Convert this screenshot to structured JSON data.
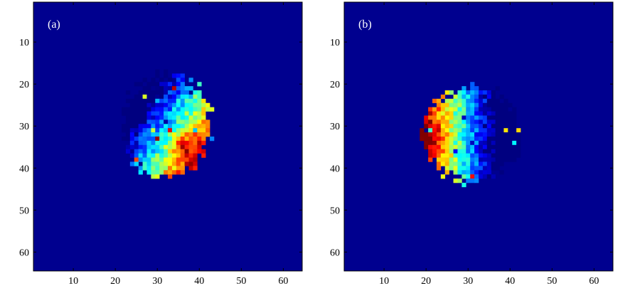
{
  "chart_data": [
    {
      "type": "heatmap",
      "panel_label": "(a)",
      "colormap": "jet",
      "background_color": "#00008f",
      "grid": false,
      "xlim": [
        0.5,
        64.5
      ],
      "ylim": [
        0.5,
        64.5
      ],
      "y_axis_direction": "down",
      "x_ticks": [
        10,
        20,
        30,
        40,
        50,
        60
      ],
      "y_ticks": [
        10,
        20,
        30,
        40,
        50,
        60
      ],
      "x_tick_labels": [
        "10",
        "20",
        "30",
        "40",
        "50",
        "60"
      ],
      "y_tick_labels": [
        "10",
        "20",
        "30",
        "40",
        "50",
        "60"
      ],
      "blob_center": [
        32,
        30
      ],
      "blob_radius_x": 11,
      "blob_radius_y": 13,
      "gradient": "cyan-blue upper-left to yellow-red lower-right",
      "hotspot_center": [
        36,
        35
      ]
    },
    {
      "type": "heatmap",
      "panel_label": "(b)",
      "colormap": "jet",
      "background_color": "#00008f",
      "grid": false,
      "xlim": [
        0.5,
        64.5
      ],
      "ylim": [
        0.5,
        64.5
      ],
      "y_axis_direction": "down",
      "x_ticks": [
        10,
        20,
        30,
        40,
        50,
        60
      ],
      "y_ticks": [
        10,
        20,
        30,
        40,
        50,
        60
      ],
      "x_tick_labels": [
        "10",
        "20",
        "30",
        "40",
        "50",
        "60"
      ],
      "y_tick_labels": [
        "10",
        "20",
        "30",
        "40",
        "50",
        "60"
      ],
      "blob_center": [
        31,
        32
      ],
      "blob_radius_x": 12,
      "blob_radius_y": 12,
      "gradient": "orange-red left to blue right",
      "hotspot_center": [
        21,
        33
      ]
    }
  ]
}
